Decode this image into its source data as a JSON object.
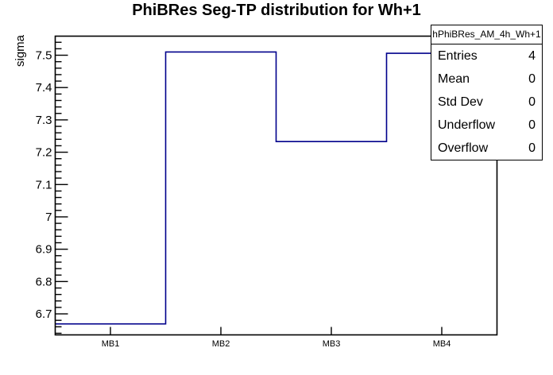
{
  "title": "PhiBRes Seg-TP distribution for Wh+1",
  "chart_data": {
    "type": "line",
    "style": "histogram-step",
    "title": "PhiBRes Seg-TP distribution for Wh+1",
    "categories": [
      "MB1",
      "MB2",
      "MB3",
      "MB4"
    ],
    "values": [
      6.669,
      7.51,
      7.233,
      7.506
    ],
    "xlabel": "",
    "ylabel": "sigma",
    "ylim": [
      6.635,
      7.559
    ],
    "y_major_step": 0.1,
    "y_minor_step": 0.02,
    "y_major_ticks": [
      6.7,
      6.8,
      6.9,
      7.0,
      7.1,
      7.2,
      7.3,
      7.4,
      7.5
    ],
    "grid": false,
    "legend": "none",
    "line_color": "#00008b",
    "frame_color": "#000000",
    "background_color": "#ffffff"
  },
  "stats_box": {
    "header": "hPhiBRes_AM_4h_Wh+1",
    "rows": [
      {
        "label": "Entries",
        "value": "4"
      },
      {
        "label": "Mean",
        "value": "0"
      },
      {
        "label": "Std Dev",
        "value": "0"
      },
      {
        "label": "Underflow",
        "value": "0"
      },
      {
        "label": "Overflow",
        "value": "0"
      }
    ]
  }
}
